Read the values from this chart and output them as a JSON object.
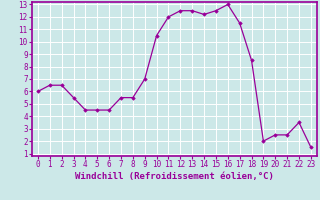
{
  "x": [
    0,
    1,
    2,
    3,
    4,
    5,
    6,
    7,
    8,
    9,
    10,
    11,
    12,
    13,
    14,
    15,
    16,
    17,
    18,
    19,
    20,
    21,
    22,
    23
  ],
  "y": [
    6.0,
    6.5,
    6.5,
    5.5,
    4.5,
    4.5,
    4.5,
    5.5,
    5.5,
    7.0,
    10.5,
    12.0,
    12.5,
    12.5,
    12.2,
    12.5,
    13.0,
    11.5,
    8.5,
    2.0,
    2.5,
    2.5,
    3.5,
    1.5
  ],
  "line_color": "#990099",
  "marker": "D",
  "markersize": 1.8,
  "linewidth": 0.9,
  "xlabel": "Windchill (Refroidissement éolien,°C)",
  "xlim": [
    -0.5,
    23.5
  ],
  "ylim": [
    0.8,
    13.2
  ],
  "yticks": [
    1,
    2,
    3,
    4,
    5,
    6,
    7,
    8,
    9,
    10,
    11,
    12,
    13
  ],
  "xticks": [
    0,
    1,
    2,
    3,
    4,
    5,
    6,
    7,
    8,
    9,
    10,
    11,
    12,
    13,
    14,
    15,
    16,
    17,
    18,
    19,
    20,
    21,
    22,
    23
  ],
  "bg_color": "#cce8e8",
  "grid_color": "#ffffff",
  "xlabel_color": "#990099",
  "xlabel_fontsize": 6.5,
  "tick_fontsize": 5.5,
  "axis_color": "#990099",
  "spine_color": "#990099"
}
